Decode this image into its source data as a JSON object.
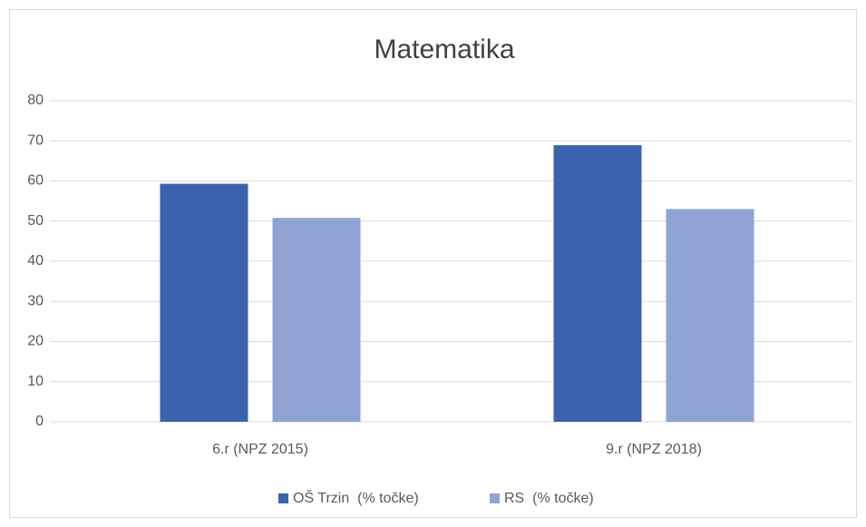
{
  "chart_data": {
    "type": "bar",
    "title": "Matematika",
    "categories": [
      "6.r (NPZ 2015)",
      "9.r (NPZ 2018)"
    ],
    "series": [
      {
        "name": "OŠ Trzin  (% točke)",
        "color": "#3a62ad",
        "values": [
          59.3,
          68.9
        ]
      },
      {
        "name": "RS  (% točke)",
        "color": "#8fa3d4",
        "values": [
          50.8,
          53.0
        ]
      }
    ],
    "ylim": [
      0,
      80
    ],
    "yticks": [
      0,
      10,
      20,
      30,
      40,
      50,
      60,
      70,
      80
    ],
    "grid": true,
    "legend": "bottom"
  }
}
